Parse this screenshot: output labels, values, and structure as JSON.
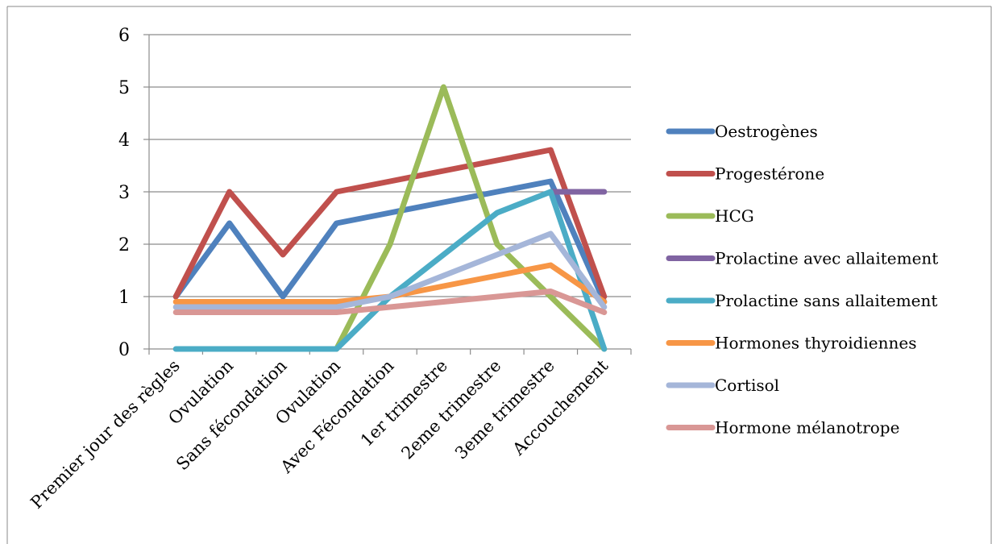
{
  "chart_data": {
    "type": "line",
    "title": "",
    "xlabel": "",
    "ylabel": "",
    "ylim": [
      0,
      6
    ],
    "yticks": [
      "0",
      "1",
      "2",
      "3",
      "4",
      "5",
      "6"
    ],
    "grid": true,
    "legend_position": "right",
    "categories": [
      "Premier jour des règles",
      "Ovulation",
      "Sans fécondation",
      "Ovulation",
      "Avec Fécondation",
      "1er trimestre",
      "2eme trimestre",
      "3eme trimestre",
      "Accouchement"
    ],
    "series": [
      {
        "name": "Oestrogènes",
        "color": "#4f81bd",
        "values": [
          1,
          2.4,
          1,
          2.4,
          2.6,
          2.8,
          3.0,
          3.2,
          0.9
        ]
      },
      {
        "name": "Progestérone",
        "color": "#c0504d",
        "values": [
          1,
          3,
          1.8,
          3,
          3.2,
          3.4,
          3.6,
          3.8,
          1
        ]
      },
      {
        "name": "HCG",
        "color": "#9bbb59",
        "values": [
          null,
          null,
          null,
          0,
          2,
          5,
          2,
          1,
          0
        ]
      },
      {
        "name": "Prolactine avec allaitement",
        "color": "#8064a2",
        "values": [
          null,
          null,
          null,
          null,
          null,
          null,
          null,
          3,
          3
        ]
      },
      {
        "name": "Prolactine sans allaitement",
        "color": "#4bacc6",
        "values": [
          0,
          0,
          0,
          0,
          1,
          1.8,
          2.6,
          3,
          0
        ]
      },
      {
        "name": "Hormones thyroidiennes",
        "color": "#f79646",
        "values": [
          0.9,
          0.9,
          0.9,
          0.9,
          1.0,
          1.2,
          1.4,
          1.6,
          0.9
        ]
      },
      {
        "name": "Cortisol",
        "color": "#a5b6d9",
        "values": [
          0.8,
          0.8,
          0.8,
          0.8,
          1.0,
          1.4,
          1.8,
          2.2,
          0.8
        ]
      },
      {
        "name": "Hormone mélanotrope",
        "color": "#d99795",
        "values": [
          0.7,
          0.7,
          0.7,
          0.7,
          0.8,
          0.9,
          1.0,
          1.1,
          0.7
        ]
      }
    ]
  }
}
